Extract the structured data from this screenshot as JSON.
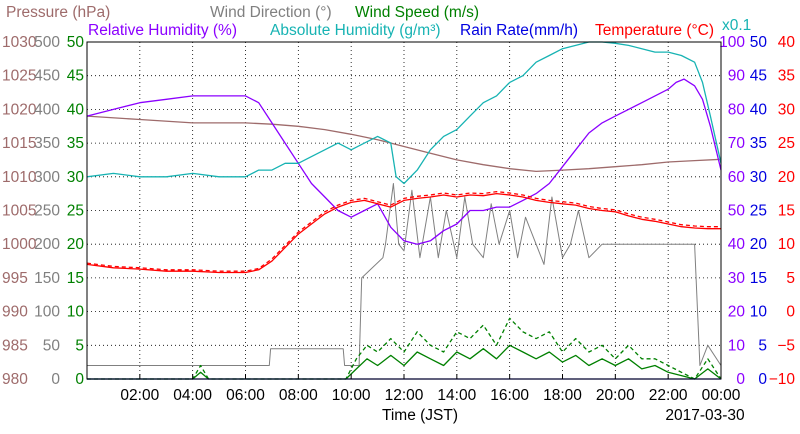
{
  "chart_data": {
    "type": "line",
    "xlabel": "Time (JST)",
    "date_label": "2017-03-30",
    "multiplier_label": "x0.1",
    "x_unit": "hours",
    "xlim": [
      0,
      24
    ],
    "x_ticks": [
      {
        "v": 2,
        "label": "02:00"
      },
      {
        "v": 4,
        "label": "04:00"
      },
      {
        "v": 6,
        "label": "06:00"
      },
      {
        "v": 8,
        "label": "08:00"
      },
      {
        "v": 10,
        "label": "10:00"
      },
      {
        "v": 12,
        "label": "12:00"
      },
      {
        "v": 14,
        "label": "14:00"
      },
      {
        "v": 16,
        "label": "16:00"
      },
      {
        "v": 18,
        "label": "18:00"
      },
      {
        "v": 20,
        "label": "20:00"
      },
      {
        "v": 22,
        "label": "22:00"
      },
      {
        "v": 24,
        "label": "00:00"
      }
    ],
    "legend_row1": [
      {
        "text": "Pressure (hPa)",
        "color": "#9e6b6b"
      },
      {
        "text": "Wind Direction (°)",
        "color": "#808080"
      },
      {
        "text": "Wind Speed (m/s)",
        "color": "#008000"
      }
    ],
    "legend_row2": [
      {
        "text": "Relative Humidity (%)",
        "color": "#8b00ff"
      },
      {
        "text": "Absolute Humidity (g/m³)",
        "color": "#17b3b3"
      },
      {
        "text": "Rain Rate(mm/h)",
        "color": "#0000e0"
      },
      {
        "text": "Temperature (°C)",
        "color": "#ff0000"
      }
    ],
    "axes": {
      "pressure": {
        "color": "#9e6b6b",
        "ylim": [
          980,
          1030
        ],
        "ticks": [
          "980",
          "985",
          "990",
          "995",
          "1000",
          "1005",
          "1010",
          "1015",
          "1020",
          "1025",
          "1030"
        ]
      },
      "wind_direction": {
        "color": "#808080",
        "ylim": [
          0,
          500
        ],
        "ticks": [
          "0",
          "50",
          "100",
          "150",
          "200",
          "250",
          "300",
          "350",
          "400",
          "450",
          "500"
        ]
      },
      "wind_speed": {
        "color": "#008000",
        "ylim": [
          0,
          50
        ],
        "ticks": [
          "0",
          "5",
          "10",
          "15",
          "20",
          "25",
          "30",
          "35",
          "40",
          "45",
          "50"
        ]
      },
      "relative_humidity": {
        "color": "#8b00ff",
        "ylim": [
          0,
          100
        ],
        "ticks": [
          "0",
          "10",
          "20",
          "30",
          "40",
          "50",
          "60",
          "70",
          "80",
          "90",
          "100"
        ]
      },
      "rain_rate": {
        "color": "#0000e0",
        "ylim": [
          0,
          50
        ],
        "ticks": [
          "0",
          "5",
          "10",
          "15",
          "20",
          "25",
          "30",
          "35",
          "40",
          "45",
          "50"
        ]
      },
      "temperature": {
        "color": "#ff0000",
        "ylim": [
          -10,
          40
        ],
        "ticks": [
          "−10",
          "−5",
          "0",
          "5",
          "10",
          "15",
          "20",
          "25",
          "30",
          "35",
          "40"
        ]
      }
    },
    "series": [
      {
        "name": "Pressure (hPa)",
        "axis": "pressure",
        "color": "#9e6b6b",
        "x": [
          0,
          2,
          4,
          6,
          7,
          8,
          9,
          10,
          11,
          12,
          13,
          14,
          15,
          16,
          17,
          18,
          19,
          20,
          21,
          22,
          23,
          24
        ],
        "values": [
          1019,
          1018.5,
          1018,
          1018,
          1017.8,
          1017.5,
          1017,
          1016.3,
          1015.5,
          1014.5,
          1013.5,
          1012.5,
          1011.8,
          1011.2,
          1010.8,
          1011,
          1011.2,
          1011.5,
          1011.8,
          1012.2,
          1012.4,
          1012.6
        ]
      },
      {
        "name": "Wind Direction (°)",
        "axis": "wind_direction",
        "color": "#808080",
        "x": [
          0,
          6.9,
          6.95,
          9.7,
          9.75,
          10.3,
          10.4,
          11.2,
          11.3,
          11.6,
          11.8,
          12,
          12.3,
          12.6,
          13,
          13.3,
          13.6,
          14,
          14.3,
          14.6,
          15,
          15.3,
          15.6,
          16,
          16.3,
          16.6,
          17,
          17.3,
          17.6,
          18,
          18.3,
          18.6,
          19,
          19.5,
          20,
          20.5,
          21,
          21.5,
          22,
          22.5,
          23,
          23.2,
          23.5,
          24
        ],
        "values": [
          20,
          20,
          45,
          45,
          20,
          20,
          150,
          180,
          200,
          290,
          200,
          190,
          280,
          180,
          270,
          180,
          250,
          180,
          270,
          200,
          180,
          260,
          200,
          250,
          180,
          240,
          200,
          170,
          270,
          180,
          200,
          250,
          180,
          200,
          200,
          200,
          200,
          200,
          200,
          200,
          200,
          20,
          50,
          20
        ]
      },
      {
        "name": "Wind Speed (m/s)",
        "axis": "wind_speed",
        "color": "#008000",
        "x": [
          0,
          4,
          4.3,
          4.6,
          5,
          9.8,
          10.2,
          10.6,
          11,
          11.5,
          12,
          12.5,
          13,
          13.5,
          14,
          14.5,
          15,
          15.5,
          16,
          16.5,
          17,
          17.5,
          18,
          18.5,
          19,
          19.5,
          20,
          20.5,
          21,
          21.5,
          22,
          22.5,
          23,
          23.5,
          24
        ],
        "values": [
          0,
          0,
          1,
          0,
          0,
          0,
          1.5,
          3,
          2,
          3.5,
          2,
          4,
          3,
          2,
          4,
          3,
          4.5,
          3,
          5,
          4,
          3,
          4,
          2.5,
          3.5,
          2,
          3,
          2,
          3,
          1.5,
          2,
          1,
          0.5,
          0,
          1.5,
          0
        ]
      },
      {
        "name": "Wind Speed (m/s)",
        "axis": "wind_speed",
        "color": "#008000",
        "dashed": true,
        "x": [
          0,
          4,
          4.3,
          4.6,
          5,
          9.8,
          10.2,
          10.6,
          11,
          11.5,
          12,
          12.5,
          13,
          13.5,
          14,
          14.5,
          15,
          15.5,
          16,
          16.5,
          17,
          17.5,
          18,
          18.5,
          19,
          19.5,
          20,
          20.5,
          21,
          21.5,
          22,
          22.5,
          23,
          23.5,
          24
        ],
        "values": [
          0,
          0,
          2,
          0,
          0,
          0,
          3,
          5,
          4,
          6,
          4,
          7,
          5,
          4,
          7,
          6,
          8,
          5,
          9,
          7,
          6,
          7,
          4,
          6,
          4,
          5,
          3,
          5,
          3,
          3,
          2,
          1,
          0,
          3,
          0
        ]
      },
      {
        "name": "Relative Humidity (%)",
        "axis": "relative_humidity",
        "color": "#8b00ff",
        "x": [
          0,
          1,
          2,
          3,
          4,
          5,
          6,
          6.5,
          7,
          7.5,
          8,
          8.5,
          9,
          9.5,
          10,
          10.5,
          11,
          11.5,
          12,
          12.5,
          13,
          13.5,
          14,
          14.5,
          15,
          15.5,
          16,
          16.5,
          17,
          17.5,
          18,
          18.5,
          19,
          19.5,
          20,
          20.5,
          21,
          21.5,
          22,
          22.3,
          22.6,
          23,
          23.3,
          23.6,
          24
        ],
        "values": [
          78,
          80,
          82,
          83,
          84,
          84,
          84,
          82,
          76,
          70,
          64,
          58,
          54,
          50,
          48,
          50,
          52,
          45,
          41,
          40,
          41,
          44,
          46,
          50,
          50,
          51,
          51,
          53,
          55,
          58,
          63,
          68,
          73,
          76,
          78,
          80,
          82,
          84,
          86,
          88,
          89,
          87,
          83,
          75,
          62
        ]
      },
      {
        "name": "Absolute Humidity (g/m³)",
        "axis": "rain_rate",
        "color": "#17b3b3",
        "x": [
          0,
          1,
          2,
          3,
          4,
          5,
          6,
          6.5,
          7,
          7.5,
          8,
          8.5,
          9,
          9.5,
          10,
          10.5,
          11,
          11.5,
          11.7,
          12,
          12.5,
          13,
          13.5,
          14,
          14.5,
          15,
          15.5,
          16,
          16.5,
          17,
          17.5,
          18,
          18.5,
          19,
          19.5,
          20,
          20.5,
          21,
          21.5,
          22,
          22.5,
          23,
          23.3,
          23.6,
          24
        ],
        "values": [
          30,
          30.5,
          30,
          30,
          30.5,
          30,
          30,
          31,
          31,
          32,
          32,
          33,
          34,
          35,
          34,
          35,
          36,
          35,
          30,
          29,
          31,
          34,
          36,
          37,
          39,
          41,
          42,
          44,
          45,
          47,
          48,
          49,
          49.5,
          50,
          50,
          49.8,
          49.5,
          49,
          48.5,
          48.5,
          48,
          47,
          44,
          39,
          32
        ]
      },
      {
        "name": "Rain Rate(mm/h)",
        "axis": "rain_rate",
        "color": "#0000e0",
        "x": [
          0,
          24
        ],
        "values": [
          0,
          0
        ]
      },
      {
        "name": "Temperature (°C)",
        "axis": "temperature",
        "color": "#ff0000",
        "x": [
          0,
          1,
          2,
          3,
          4,
          5,
          6,
          6.5,
          7,
          7.5,
          8,
          8.5,
          9,
          9.5,
          10,
          10.5,
          11,
          11.5,
          12,
          12.5,
          13,
          13.5,
          14,
          14.5,
          15,
          15.5,
          16,
          16.5,
          17,
          17.5,
          18,
          18.5,
          19,
          19.5,
          20,
          20.5,
          21,
          21.5,
          22,
          22.5,
          23,
          23.5,
          24
        ],
        "values": [
          7,
          6.5,
          6.3,
          6,
          6,
          5.8,
          5.8,
          6.2,
          7.5,
          9.5,
          11.5,
          13,
          14.5,
          15.5,
          16.2,
          16.5,
          16,
          15.5,
          16.5,
          16.8,
          17,
          17.3,
          17,
          17.3,
          17.2,
          17.5,
          17.3,
          17,
          16.5,
          16.2,
          16,
          15.8,
          15.3,
          15,
          14.8,
          14.2,
          13.7,
          13.4,
          13,
          12.6,
          12.4,
          12.3,
          12.3
        ]
      },
      {
        "name": "Temperature (°C)",
        "axis": "temperature",
        "color": "#ff0000",
        "dashed": true,
        "x": [
          0,
          1,
          2,
          3,
          4,
          5,
          6,
          6.5,
          7,
          7.5,
          8,
          8.5,
          9,
          9.5,
          10,
          10.5,
          11,
          11.5,
          12,
          12.5,
          13,
          13.5,
          14,
          14.5,
          15,
          15.5,
          16,
          16.5,
          17,
          17.5,
          18,
          18.5,
          19,
          19.5,
          20,
          20.5,
          21,
          21.5,
          22,
          22.5,
          23,
          23.5,
          24
        ],
        "values": [
          7.2,
          6.7,
          6.5,
          6.2,
          6.2,
          6,
          6,
          6.4,
          7.8,
          9.8,
          11.8,
          13.3,
          14.8,
          15.8,
          16.5,
          16.8,
          16.3,
          15.8,
          16.8,
          17.1,
          17.3,
          17.6,
          17.3,
          17.6,
          17.5,
          17.8,
          17.6,
          17.3,
          16.8,
          16.5,
          16.3,
          16.1,
          15.6,
          15.3,
          15.1,
          14.5,
          14,
          13.7,
          13.3,
          12.9,
          12.7,
          12.6,
          12.6
        ]
      }
    ]
  }
}
